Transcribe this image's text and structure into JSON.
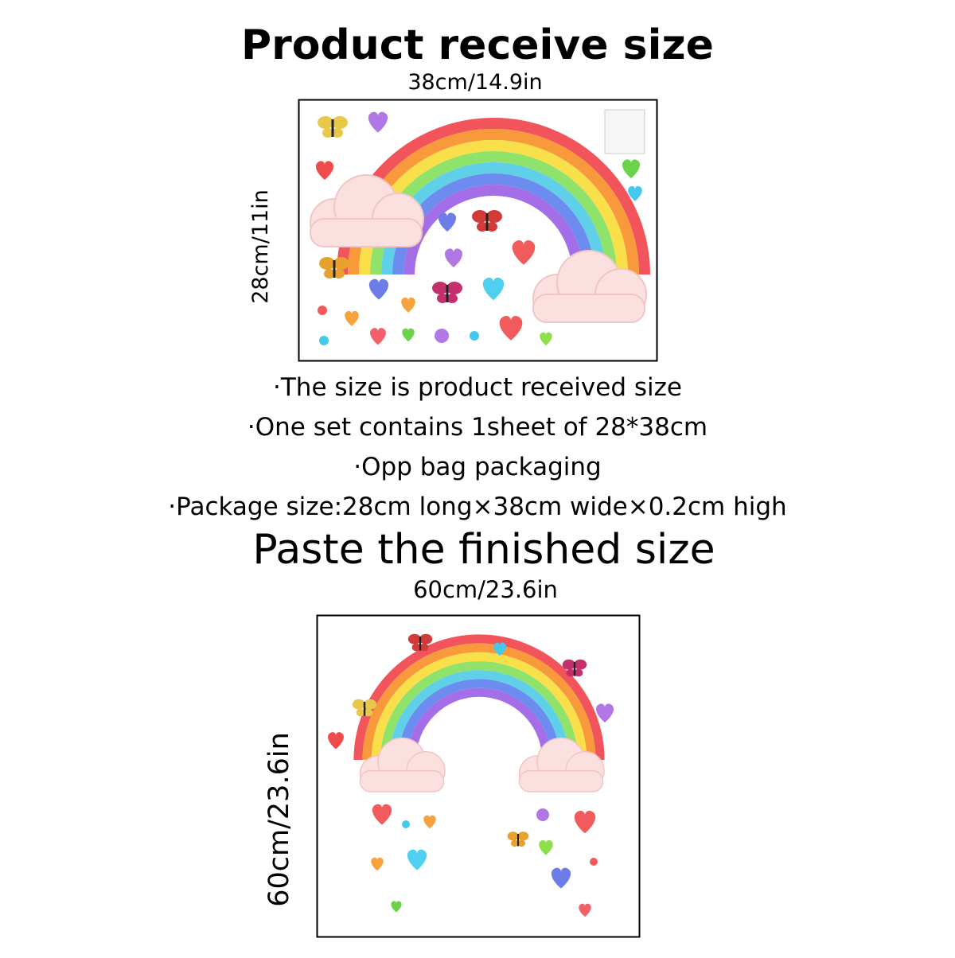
{
  "received": {
    "title": "Product receive size",
    "width_label": "38cm/14.9in",
    "height_label": "28cm/11in"
  },
  "notes": [
    "·The size is product received size",
    "·One set contains 1sheet of 28*38cm",
    "·Opp bag packaging",
    "·Package size:28cm long×38cm wide×0.2cm high"
  ],
  "finished": {
    "title": "Paste the finished size",
    "width_label": "60cm/23.6in",
    "height_label": "60cm/23.6in"
  }
}
